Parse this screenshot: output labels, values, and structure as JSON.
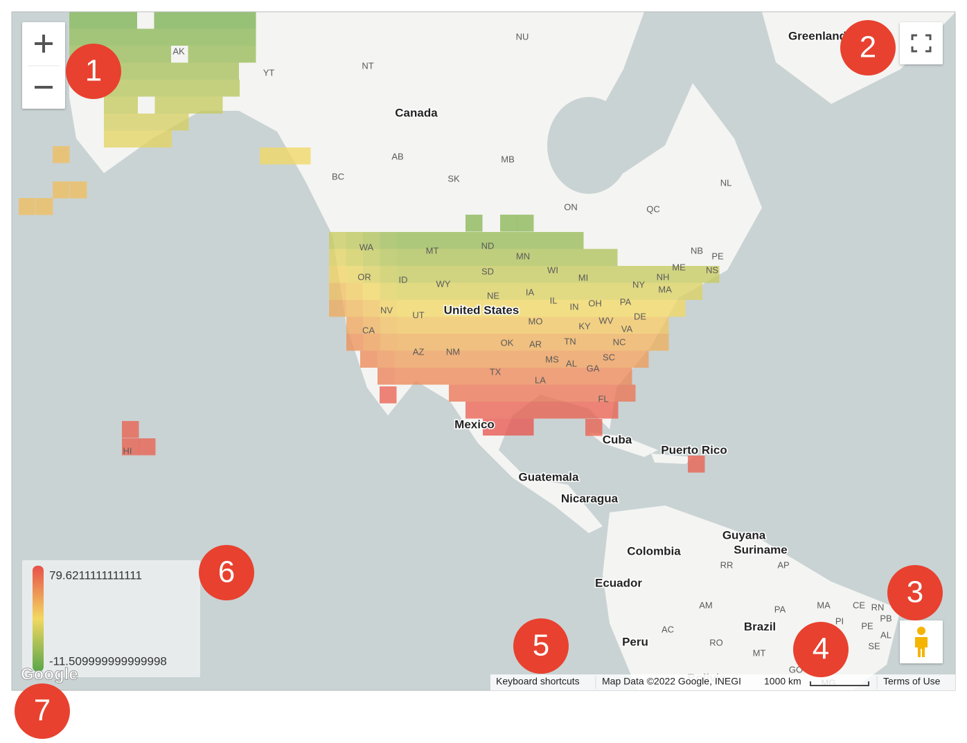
{
  "country_labels": [
    "Canada",
    "United States",
    "Mexico",
    "Cuba",
    "Puerto Rico",
    "Guatemala",
    "Nicaragua",
    "Colombia",
    "Guyana",
    "Suriname",
    "Ecuador",
    "Brazil",
    "Peru",
    "Greenland",
    "Bolivia"
  ],
  "region_labels": [
    "NU",
    "NT",
    "YT",
    "AK",
    "AB",
    "MB",
    "BC",
    "SK",
    "NL",
    "ON",
    "QC",
    "WA",
    "MT",
    "ND",
    "MN",
    "WI",
    "MI",
    "NB",
    "PE",
    "NS",
    "ME",
    "OR",
    "ID",
    "WY",
    "SD",
    "NY",
    "NH",
    "MA",
    "NE",
    "IA",
    "IL",
    "IN",
    "OH",
    "PA",
    "NV",
    "UT",
    "CA",
    "MO",
    "KY",
    "WV",
    "DE",
    "VA",
    "OK",
    "AR",
    "TN",
    "NC",
    "AZ",
    "NM",
    "MS",
    "AL",
    "GA",
    "SC",
    "TX",
    "LA",
    "FL",
    "HI",
    "RR",
    "AP",
    "AM",
    "PA",
    "MA",
    "CE",
    "RN",
    "PB",
    "PI",
    "PE",
    "AL",
    "SE",
    "AC",
    "RO",
    "MT",
    "GO",
    "MG"
  ],
  "legend": {
    "max": "79.6211111111111",
    "min": "-11.509999999999998"
  },
  "footer": {
    "logo": "Google",
    "shortcuts": "Keyboard shortcuts",
    "attribution": "Map Data ©2022 Google, INEGI",
    "scale": "1000 km",
    "terms": "Terms of Use"
  },
  "callouts": [
    "1",
    "2",
    "3",
    "4",
    "5",
    "6",
    "7"
  ]
}
